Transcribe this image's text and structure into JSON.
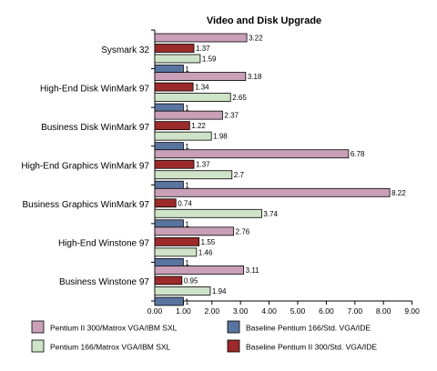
{
  "chart_data": {
    "type": "bar",
    "orientation": "horizontal",
    "title": "Video and Disk Upgrade",
    "xlabel": "",
    "ylabel": "",
    "xlim": [
      0,
      9
    ],
    "x_ticks": [
      "0.00",
      "1.00",
      "2.00",
      "3.00",
      "4.00",
      "5.00",
      "6.00",
      "7.00",
      "8.00",
      "9.00"
    ],
    "categories": [
      "Sysmark 32",
      "High-End Disk WinMark 97",
      "Business Disk WinMark 97",
      "High-End Graphics WinMark 97",
      "Business Graphics WinMark 97",
      "High-End Winstone 97",
      "Business Winstone 97"
    ],
    "series": [
      {
        "name": "Pentium II 300/Matrox VGA/IBM SXL",
        "color": "#c9a0b8",
        "values": [
          3.22,
          3.18,
          2.37,
          6.78,
          8.22,
          2.76,
          3.11
        ],
        "labels": [
          "3.22",
          "3.18",
          "2.37",
          "6.78",
          "8.22",
          "2.76",
          "3.11"
        ]
      },
      {
        "name": "Baseline Pentium II 300/Std. VGA/IDE",
        "color": "#9c2a2a",
        "values": [
          1.37,
          1.34,
          1.22,
          1.37,
          0.74,
          1.55,
          0.95
        ],
        "labels": [
          "1.37",
          "1.34",
          "1.22",
          "1.37",
          "0.74",
          "1.55",
          "0.95"
        ]
      },
      {
        "name": "Pentium 166/Matrox VGA/IBM SXL",
        "color": "#cfe3c8",
        "values": [
          1.59,
          2.65,
          1.98,
          2.7,
          3.74,
          1.46,
          1.94
        ],
        "labels": [
          "1.59",
          "2.65",
          "1.98",
          "2.7",
          "3.74",
          "1.46",
          "1.94"
        ]
      },
      {
        "name": "Baseline Pentium 166/Std. VGA/IDE",
        "color": "#5a74a0",
        "values": [
          1,
          1,
          1,
          1,
          1,
          1,
          1
        ],
        "labels": [
          "1",
          "1",
          "1",
          "1",
          "1",
          "1",
          "1"
        ]
      }
    ],
    "legend": {
      "placement": "bottom",
      "order": [
        0,
        3,
        2,
        1
      ]
    },
    "grid": false
  }
}
